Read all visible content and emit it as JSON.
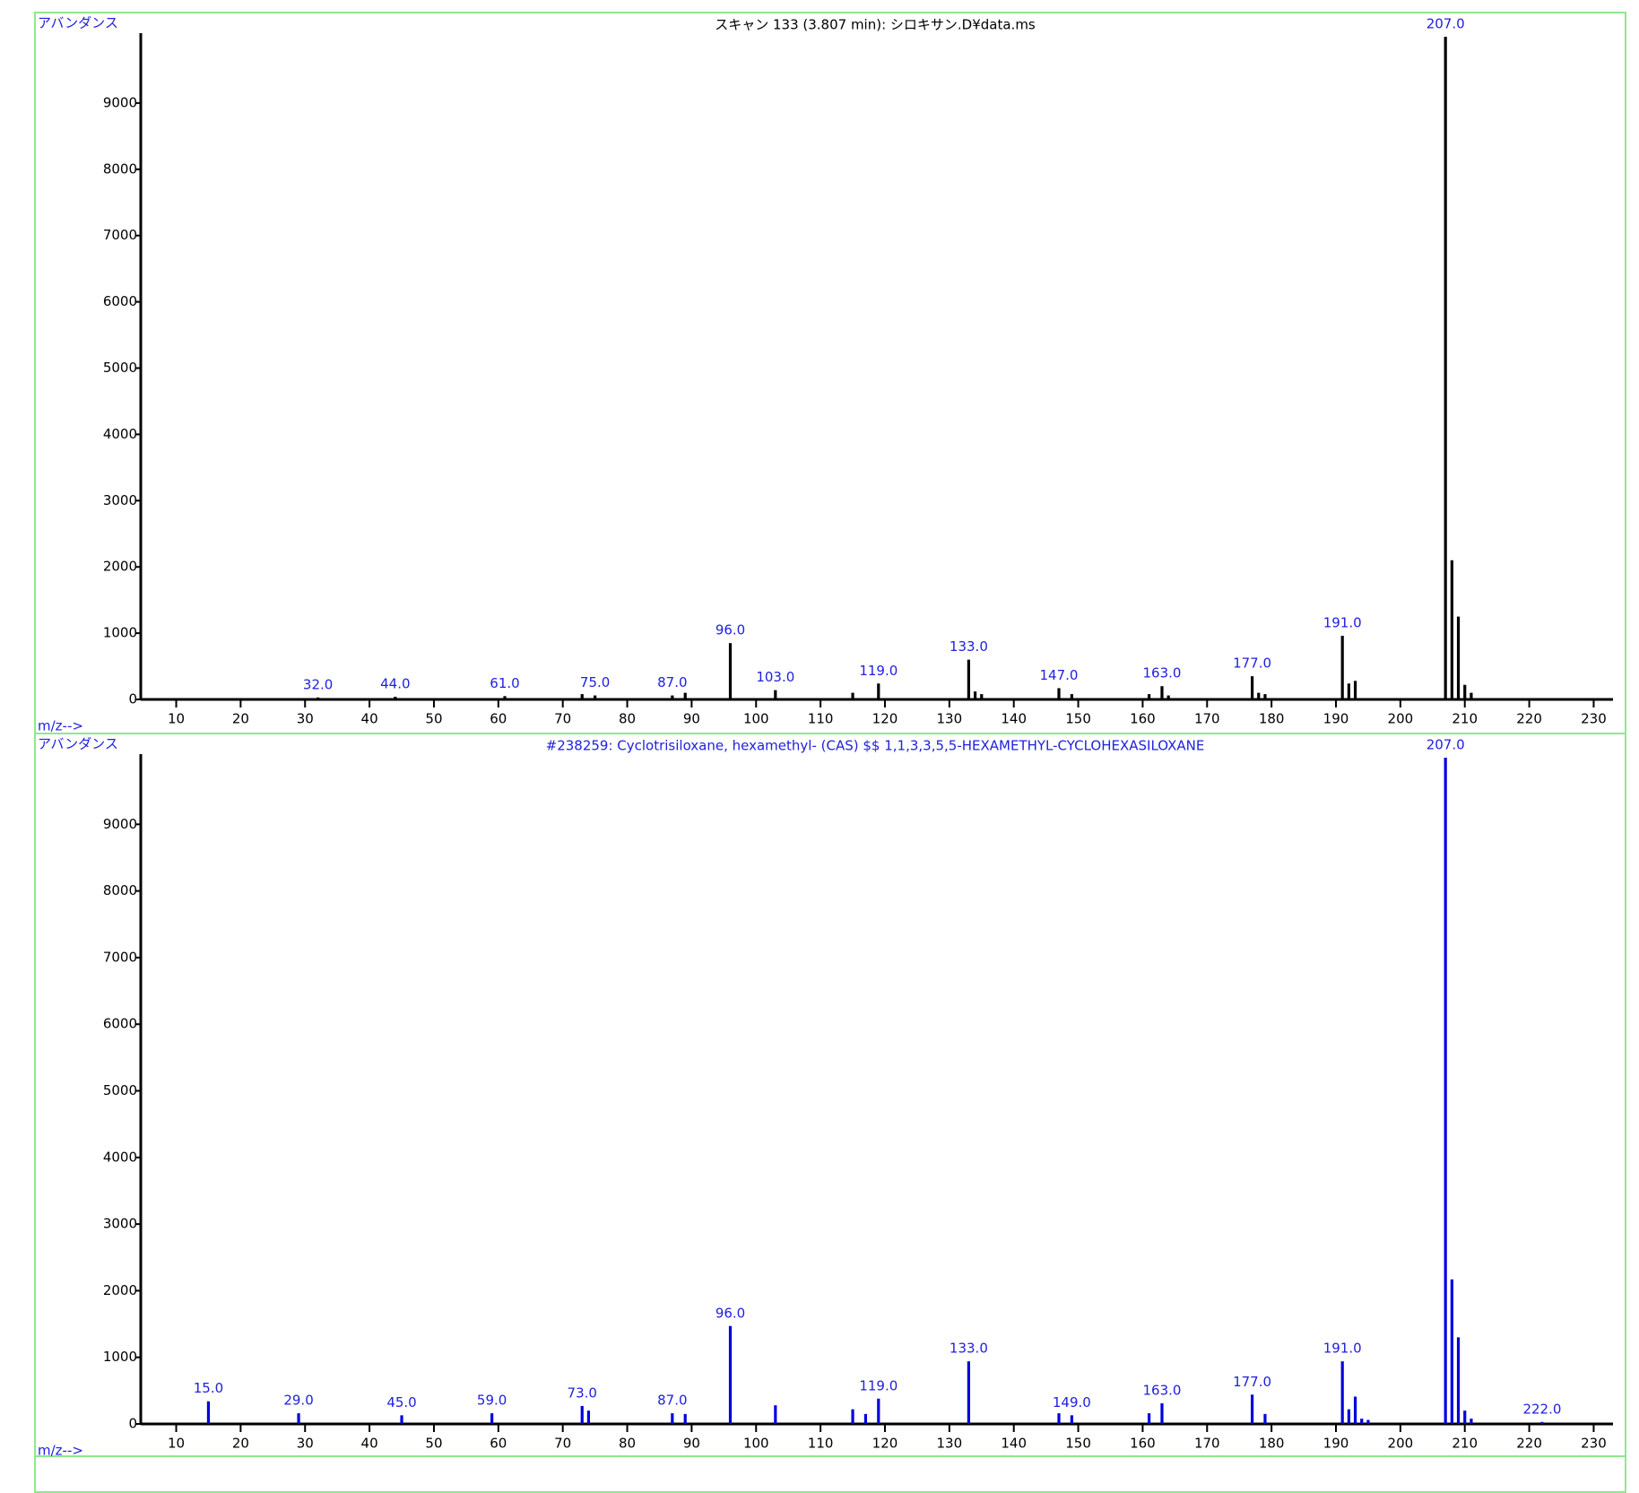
{
  "chart_data": [
    {
      "type": "bar",
      "title": "スキャン 133 (3.807 min): シロキサン.D¥data.ms",
      "title_color": "#000000",
      "y_label": "アバンダンス",
      "x_label": "m/z-->",
      "color": "#000000",
      "label_color": "#2020e0",
      "x": [
        32,
        44,
        61,
        73,
        75,
        87,
        89,
        96,
        103,
        115,
        119,
        133,
        134,
        135,
        147,
        149,
        161,
        163,
        164,
        177,
        178,
        179,
        191,
        192,
        193,
        207,
        208,
        209,
        210,
        211
      ],
      "values": [
        30,
        40,
        50,
        80,
        60,
        60,
        100,
        850,
        140,
        100,
        240,
        600,
        120,
        80,
        170,
        80,
        80,
        200,
        60,
        350,
        100,
        80,
        960,
        240,
        280,
        10000,
        2100,
        1250,
        220,
        100
      ],
      "peak_labels": [
        "32.0",
        "44.0",
        "61.0",
        null,
        "75.0",
        "87.0",
        null,
        "96.0",
        "103.0",
        null,
        "119.0",
        "133.0",
        null,
        null,
        "147.0",
        null,
        null,
        "163.0",
        null,
        "177.0",
        null,
        null,
        "191.0",
        null,
        null,
        "207.0",
        null,
        null,
        null,
        null
      ],
      "xlim": [
        4.5,
        233
      ],
      "xticks": [
        10,
        20,
        30,
        40,
        50,
        60,
        70,
        80,
        90,
        100,
        110,
        120,
        130,
        140,
        150,
        160,
        170,
        180,
        190,
        200,
        210,
        220,
        230
      ],
      "ylim": [
        0,
        10000
      ],
      "yticks": [
        0,
        1000,
        2000,
        3000,
        4000,
        5000,
        6000,
        7000,
        8000,
        9000
      ]
    },
    {
      "type": "bar",
      "title": "#238259: Cyclotrisiloxane, hexamethyl- (CAS) $$ 1,1,3,3,5,5-HEXAMETHYL-CYCLOHEXASILOXANE",
      "title_color": "#2020e0",
      "y_label": "アバンダンス",
      "x_label": "m/z-->",
      "color": "#0000e0",
      "label_color": "#2020e0",
      "x": [
        15,
        29,
        45,
        59,
        73,
        74,
        87,
        89,
        96,
        103,
        115,
        117,
        119,
        133,
        147,
        149,
        161,
        163,
        177,
        179,
        191,
        192,
        193,
        194,
        195,
        207,
        208,
        209,
        210,
        211,
        222
      ],
      "values": [
        340,
        160,
        130,
        160,
        270,
        200,
        160,
        150,
        1470,
        280,
        220,
        150,
        380,
        940,
        160,
        130,
        160,
        310,
        440,
        150,
        940,
        220,
        410,
        80,
        60,
        10000,
        2170,
        1300,
        200,
        80,
        30
      ],
      "peak_labels": [
        "15.0",
        "29.0",
        "45.0",
        "59.0",
        "73.0",
        null,
        "87.0",
        null,
        "96.0",
        null,
        null,
        null,
        "119.0",
        "133.0",
        null,
        "149.0",
        null,
        "163.0",
        "177.0",
        null,
        "191.0",
        null,
        null,
        null,
        null,
        "207.0",
        null,
        null,
        null,
        null,
        "222.0"
      ],
      "xlim": [
        4.5,
        233
      ],
      "xticks": [
        10,
        20,
        30,
        40,
        50,
        60,
        70,
        80,
        90,
        100,
        110,
        120,
        130,
        140,
        150,
        160,
        170,
        180,
        190,
        200,
        210,
        220,
        230
      ],
      "ylim": [
        0,
        10000
      ],
      "yticks": [
        0,
        1000,
        2000,
        3000,
        4000,
        5000,
        6000,
        7000,
        8000,
        9000
      ]
    }
  ]
}
